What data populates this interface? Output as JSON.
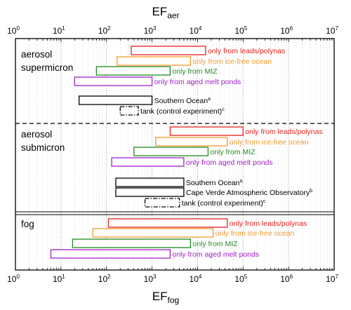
{
  "chart_data": {
    "type": "range-bar",
    "x_scale": "log",
    "xlim": [
      1,
      10000000
    ],
    "top_axis_label": "EF_aer",
    "bottom_axis_label": "EF_fog",
    "x_ticks": [
      {
        "value": 1,
        "base": "10",
        "exp": "0"
      },
      {
        "value": 10,
        "base": "10",
        "exp": "1"
      },
      {
        "value": 100,
        "base": "10",
        "exp": "2"
      },
      {
        "value": 1000,
        "base": "10",
        "exp": "3"
      },
      {
        "value": 10000,
        "base": "10",
        "exp": "4"
      },
      {
        "value": 100000,
        "base": "10",
        "exp": "5"
      },
      {
        "value": 1000000,
        "base": "10",
        "exp": "6"
      },
      {
        "value": 10000000,
        "base": "10",
        "exp": "7"
      }
    ],
    "grid": true,
    "panels": [
      {
        "title": [
          "aerosol",
          "supermicron"
        ],
        "bars": [
          {
            "label": "only from leads/polynas",
            "sup": "",
            "low": 350,
            "high": 15000,
            "color": "#e8211b",
            "style": "solid"
          },
          {
            "label": "only from ice-free ocean",
            "sup": "",
            "low": 170,
            "high": 7000,
            "color": "#f39a2b",
            "style": "solid"
          },
          {
            "label": "only from MIZ",
            "sup": "",
            "low": 60,
            "high": 2500,
            "color": "#1f8c1f",
            "style": "solid"
          },
          {
            "label": "only from aged melt ponds",
            "sup": "",
            "low": 20,
            "high": 1000,
            "color": "#a020c8",
            "style": "solid"
          },
          {
            "label": "Southern Ocean",
            "sup": "a",
            "low": 25,
            "high": 1000,
            "color": "#000000",
            "style": "solid"
          },
          {
            "label": "tank (control experiment)",
            "sup": "c",
            "low": 200,
            "high": 500,
            "color": "#000000",
            "style": "dashdot"
          }
        ]
      },
      {
        "title": [
          "aerosol",
          "submicron"
        ],
        "bars": [
          {
            "label": "only from leads/polynas",
            "sup": "",
            "low": 2500,
            "high": 100000,
            "color": "#e8211b",
            "style": "solid"
          },
          {
            "label": "only from ice-free ocean",
            "sup": "",
            "low": 1200,
            "high": 45000,
            "color": "#f39a2b",
            "style": "solid"
          },
          {
            "label": "only from MIZ",
            "sup": "",
            "low": 400,
            "high": 17000,
            "color": "#1f8c1f",
            "style": "solid"
          },
          {
            "label": "only from aged melt ponds",
            "sup": "",
            "low": 130,
            "high": 5000,
            "color": "#a020c8",
            "style": "solid"
          },
          {
            "label": "Southern Ocean",
            "sup": "a",
            "low": 160,
            "high": 5000,
            "color": "#000000",
            "style": "solid"
          },
          {
            "label": "Cape Verde Atmospheric Observatory",
            "sup": "b",
            "low": 160,
            "high": 5000,
            "color": "#000000",
            "style": "solid"
          },
          {
            "label": "tank (control experiment)",
            "sup": "c",
            "low": 700,
            "high": 4000,
            "color": "#000000",
            "style": "dashdot"
          }
        ]
      },
      {
        "title": [
          "fog"
        ],
        "bars": [
          {
            "label": "only from leads/polynas",
            "sup": "",
            "low": 110,
            "high": 45000,
            "color": "#e8211b",
            "style": "solid"
          },
          {
            "label": "only from ice-free ocean",
            "sup": "",
            "low": 50,
            "high": 22000,
            "color": "#f39a2b",
            "style": "solid"
          },
          {
            "label": "only from MIZ",
            "sup": "",
            "low": 18,
            "high": 7000,
            "color": "#1f8c1f",
            "style": "solid"
          },
          {
            "label": "only from aged melt ponds",
            "sup": "",
            "low": 6,
            "high": 2500,
            "color": "#a020c8",
            "style": "solid"
          }
        ]
      }
    ]
  }
}
